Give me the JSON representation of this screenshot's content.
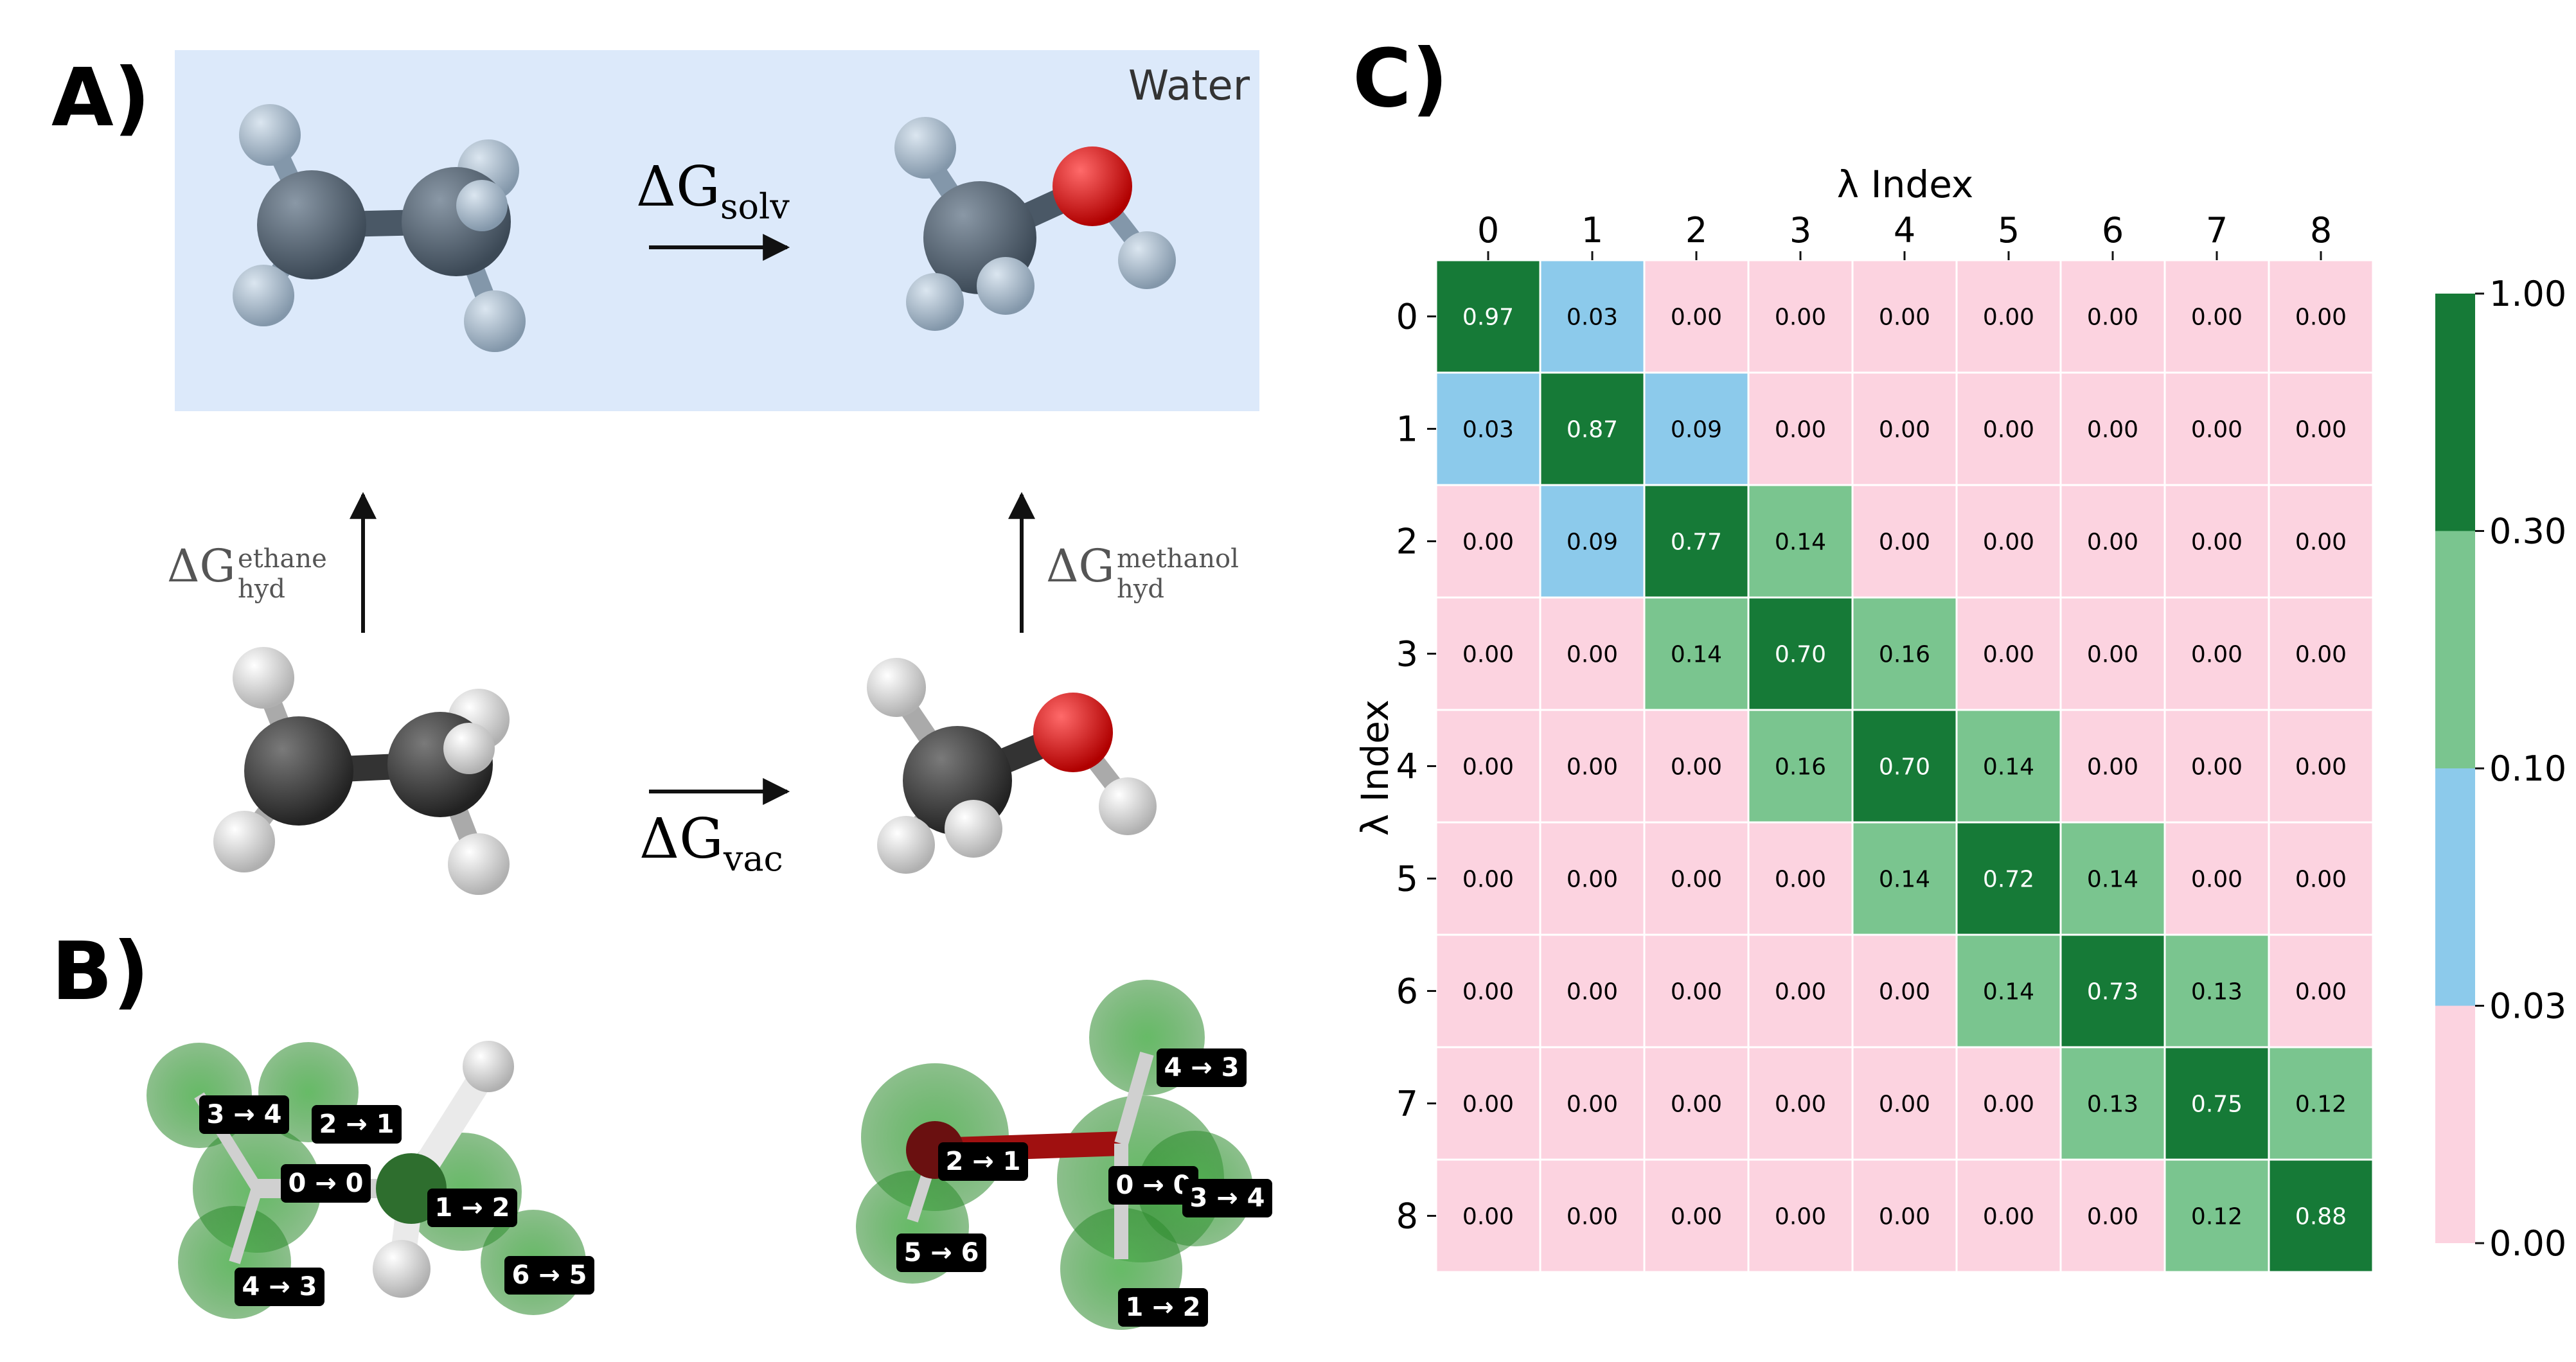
{
  "panel_a": {
    "letter": "A)",
    "solvent_label": "Water",
    "solv": {
      "symbol": "ΔG",
      "sub": "solv"
    },
    "vac": {
      "symbol": "ΔG",
      "sub": "vac"
    },
    "hyd_ethane": {
      "symbol": "ΔG",
      "sup": "ethane",
      "sub": "hyd"
    },
    "hyd_methanol": {
      "symbol": "ΔG",
      "sup": "methanol",
      "sub": "hyd"
    },
    "colors": {
      "water_box": "#dce9fa",
      "carbon_solvated": "#4a5866",
      "hydrogen_solvated": "#a6b7c7",
      "carbon_vacuum": "#3a3a3a",
      "hydrogen_vacuum": "#e6e6e6",
      "oxygen": "#e01010"
    }
  },
  "panel_b": {
    "letter": "B)",
    "ethane_labels": [
      "3 → 4",
      "2 → 1",
      "0 → 0",
      "1 → 2",
      "4 → 3",
      "6 → 5"
    ],
    "methanol_labels": [
      "4 → 3",
      "2 → 1",
      "0 → 0",
      "3 → 4",
      "5 → 6",
      "1 → 2"
    ],
    "colors": {
      "halo": "#3a9a3a"
    }
  },
  "panel_c": {
    "letter": "C)"
  },
  "chart_data": {
    "type": "heatmap",
    "xlabel": "λ Index",
    "ylabel": "λ Index",
    "x_ticks": [
      "0",
      "1",
      "2",
      "3",
      "4",
      "5",
      "6",
      "7",
      "8"
    ],
    "y_ticks": [
      "0",
      "1",
      "2",
      "3",
      "4",
      "5",
      "6",
      "7",
      "8"
    ],
    "x_axis_position": "top",
    "values": [
      [
        0.97,
        0.03,
        0.0,
        0.0,
        0.0,
        0.0,
        0.0,
        0.0,
        0.0
      ],
      [
        0.03,
        0.87,
        0.09,
        0.0,
        0.0,
        0.0,
        0.0,
        0.0,
        0.0
      ],
      [
        0.0,
        0.09,
        0.77,
        0.14,
        0.0,
        0.0,
        0.0,
        0.0,
        0.0
      ],
      [
        0.0,
        0.0,
        0.14,
        0.7,
        0.16,
        0.0,
        0.0,
        0.0,
        0.0
      ],
      [
        0.0,
        0.0,
        0.0,
        0.16,
        0.7,
        0.14,
        0.0,
        0.0,
        0.0
      ],
      [
        0.0,
        0.0,
        0.0,
        0.0,
        0.14,
        0.72,
        0.14,
        0.0,
        0.0
      ],
      [
        0.0,
        0.0,
        0.0,
        0.0,
        0.0,
        0.14,
        0.73,
        0.13,
        0.0
      ],
      [
        0.0,
        0.0,
        0.0,
        0.0,
        0.0,
        0.0,
        0.13,
        0.75,
        0.12
      ],
      [
        0.0,
        0.0,
        0.0,
        0.0,
        0.0,
        0.0,
        0.0,
        0.12,
        0.88
      ]
    ],
    "colorbar": {
      "ticks": [
        "0.00",
        "0.03",
        "0.10",
        "0.30",
        "1.00"
      ],
      "bounds": [
        0.0,
        0.03,
        0.1,
        0.3,
        1.0
      ],
      "colors": [
        "#fcd3e0",
        "#8ccaeb",
        "#7ac58f",
        "#167a37"
      ]
    },
    "cell_text_colors": {
      "dark": "#ffffff",
      "light": "#000000"
    }
  }
}
